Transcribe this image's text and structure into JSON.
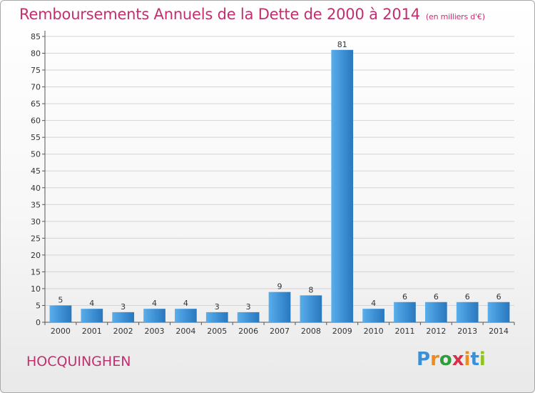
{
  "title": "Remboursements Annuels de la Dette de 2000 à 2014",
  "subtitle": "(en milliers d'€)",
  "commune": "HOCQUINGHEN",
  "logo": {
    "letters": [
      "P",
      "r",
      "o",
      "x",
      "i",
      "t",
      "i"
    ],
    "colors": [
      "#3a8fd6",
      "#f08a1c",
      "#2e9e3a",
      "#d9304a",
      "#f08a1c",
      "#3a8fd6",
      "#8fc31f"
    ]
  },
  "chart_data": {
    "type": "bar",
    "categories": [
      "2000",
      "2001",
      "2002",
      "2003",
      "2004",
      "2005",
      "2006",
      "2007",
      "2008",
      "2009",
      "2010",
      "2011",
      "2012",
      "2013",
      "2014"
    ],
    "values": [
      5,
      4,
      3,
      4,
      4,
      3,
      3,
      9,
      8,
      81,
      4,
      6,
      6,
      6,
      6
    ],
    "value_labels": [
      "5",
      "4",
      "3",
      "4",
      "4",
      "3",
      "3",
      "9",
      "8",
      "81",
      "4",
      "6",
      "6",
      "6",
      "6"
    ],
    "ylim": [
      0,
      85
    ],
    "yticks": [
      "0",
      "5",
      "10",
      "15",
      "20",
      "25",
      "30",
      "35",
      "40",
      "45",
      "50",
      "55",
      "60",
      "65",
      "70",
      "75",
      "80",
      "85"
    ],
    "grid": true,
    "bar_color": "#3d8fd4",
    "bar_color_light": "#5aaeea",
    "bar_color_dark": "#2a77bd"
  }
}
